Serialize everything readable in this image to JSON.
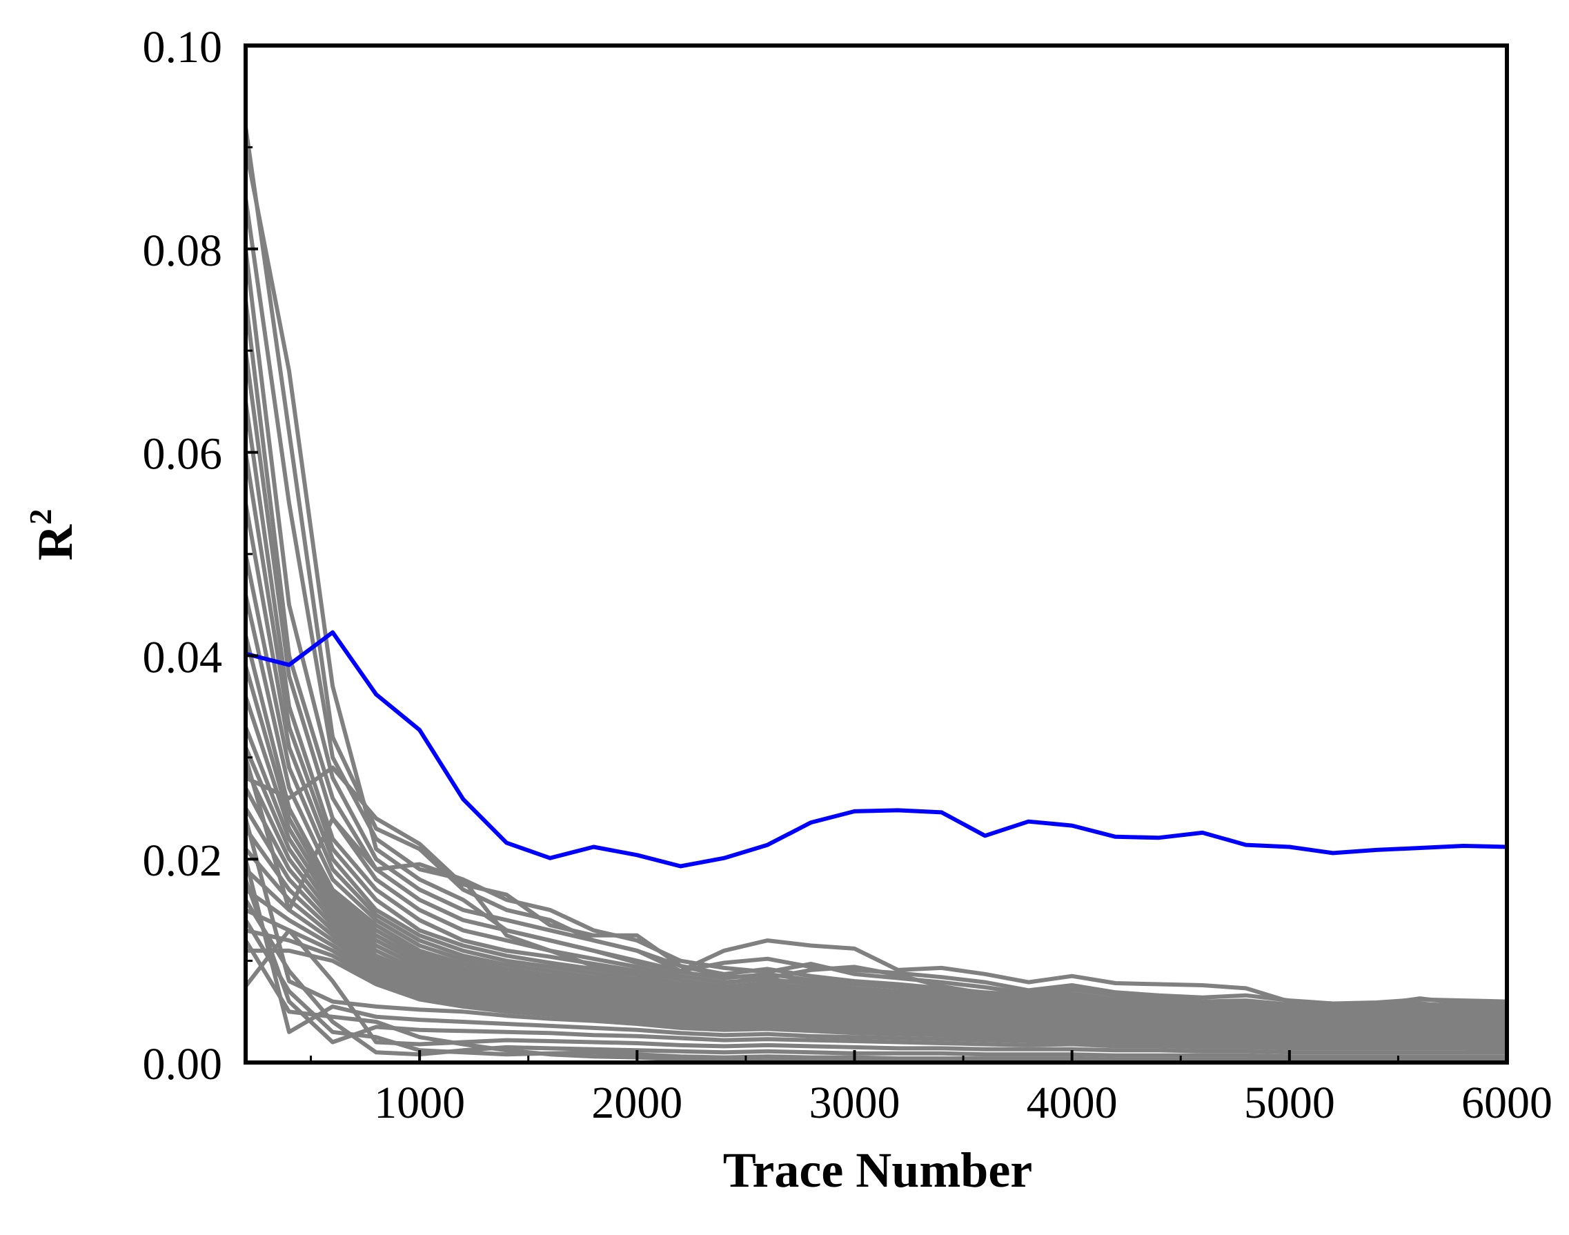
{
  "chart_data": {
    "type": "line",
    "title": "",
    "xlabel": "Trace Number",
    "ylabel": "R",
    "ylabel_sup": "2",
    "xlim": [
      200,
      6000
    ],
    "ylim": [
      0,
      0.1
    ],
    "x_ticks": [
      1000,
      2000,
      3000,
      4000,
      5000,
      6000
    ],
    "x_tick_labels": [
      "1000",
      "2000",
      "3000",
      "4000",
      "5000",
      "6000"
    ],
    "x_minor_ticks": [
      500,
      1500,
      2500,
      3500,
      4500,
      5500
    ],
    "y_ticks": [
      0,
      0.02,
      0.04,
      0.06,
      0.08,
      0.1
    ],
    "y_tick_labels": [
      "0.00",
      "0.02",
      "0.04",
      "0.06",
      "0.08",
      "0.10"
    ],
    "y_minor_ticks": [
      0.01,
      0.03,
      0.05,
      0.07,
      0.09
    ],
    "grid": false,
    "legend": "none",
    "colors": {
      "highlight": "#0000ff",
      "others": "#808080",
      "frame": "#000000"
    },
    "x": [
      200,
      400,
      600,
      800,
      1000,
      1200,
      1400,
      1600,
      1800,
      2000,
      2200,
      2400,
      2600,
      2800,
      3000,
      3200,
      3400,
      3600,
      3800,
      4000,
      4200,
      4400,
      4600,
      4800,
      5000,
      5200,
      5400,
      5600,
      5800,
      6000
    ],
    "highlight_series": {
      "color": "#0000ff",
      "values": [
        0.0402,
        0.0391,
        0.0423,
        0.0362,
        0.0327,
        0.0259,
        0.0216,
        0.0201,
        0.0212,
        0.0204,
        0.0193,
        0.0201,
        0.0214,
        0.0236,
        0.0247,
        0.0248,
        0.0246,
        0.0223,
        0.0237,
        0.0233,
        0.0222,
        0.0221,
        0.0226,
        0.0214,
        0.0212,
        0.0206,
        0.0209,
        0.0211,
        0.0213,
        0.0212
      ]
    },
    "other_series": [
      [
        0.092,
        0.062,
        0.032,
        0.023,
        0.021,
        0.017,
        0.015,
        0.014,
        0.012,
        0.011,
        0.009,
        0.011,
        0.012,
        0.0115,
        0.0112,
        0.0091,
        0.0093,
        0.0087,
        0.0079,
        0.0085,
        0.0078,
        0.0077,
        0.0076,
        0.0073,
        0.006,
        0.0058,
        0.0059,
        0.0062,
        0.0061,
        0.006
      ],
      [
        0.09,
        0.068,
        0.037,
        0.021,
        0.018,
        0.016,
        0.013,
        0.012,
        0.011,
        0.01,
        0.009,
        0.0098,
        0.0102,
        0.0094,
        0.0091,
        0.0088,
        0.0084,
        0.0079,
        0.0071,
        0.0076,
        0.0069,
        0.0066,
        0.0064,
        0.0066,
        0.0061,
        0.0058,
        0.0057,
        0.0063,
        0.0058,
        0.0057
      ],
      [
        0.085,
        0.055,
        0.03,
        0.022,
        0.019,
        0.018,
        0.016,
        0.015,
        0.013,
        0.012,
        0.01,
        0.0093,
        0.0089,
        0.0097,
        0.0087,
        0.0083,
        0.0079,
        0.0074,
        0.0068,
        0.0072,
        0.0066,
        0.0063,
        0.006,
        0.0061,
        0.0057,
        0.0055,
        0.0056,
        0.0058,
        0.0055,
        0.0054
      ],
      [
        0.08,
        0.045,
        0.028,
        0.02,
        0.017,
        0.015,
        0.014,
        0.013,
        0.012,
        0.011,
        0.0095,
        0.0087,
        0.0092,
        0.0085,
        0.008,
        0.0077,
        0.0073,
        0.0069,
        0.0066,
        0.0068,
        0.0062,
        0.006,
        0.0058,
        0.0057,
        0.0054,
        0.0052,
        0.0053,
        0.0055,
        0.0053,
        0.0052
      ],
      [
        0.075,
        0.04,
        0.026,
        0.019,
        0.016,
        0.014,
        0.013,
        0.012,
        0.011,
        0.0098,
        0.0089,
        0.0083,
        0.0087,
        0.0081,
        0.0077,
        0.0074,
        0.007,
        0.0066,
        0.0063,
        0.0065,
        0.0059,
        0.0057,
        0.0055,
        0.0054,
        0.0052,
        0.005,
        0.0051,
        0.0052,
        0.0051,
        0.005
      ],
      [
        0.07,
        0.038,
        0.024,
        0.018,
        0.015,
        0.013,
        0.012,
        0.011,
        0.0102,
        0.0094,
        0.0085,
        0.0079,
        0.0082,
        0.0077,
        0.0073,
        0.007,
        0.0067,
        0.0063,
        0.006,
        0.0062,
        0.0057,
        0.0055,
        0.0053,
        0.0052,
        0.005,
        0.0048,
        0.0049,
        0.005,
        0.0049,
        0.0048
      ],
      [
        0.065,
        0.035,
        0.022,
        0.017,
        0.014,
        0.012,
        0.011,
        0.0104,
        0.0097,
        0.009,
        0.0081,
        0.0075,
        0.0078,
        0.0073,
        0.007,
        0.0067,
        0.0064,
        0.006,
        0.0058,
        0.0059,
        0.0054,
        0.0052,
        0.0051,
        0.005,
        0.0048,
        0.0046,
        0.0047,
        0.0048,
        0.0047,
        0.0046
      ],
      [
        0.06,
        0.033,
        0.021,
        0.016,
        0.013,
        0.0115,
        0.0105,
        0.0098,
        0.0092,
        0.0086,
        0.0077,
        0.0072,
        0.0074,
        0.007,
        0.0067,
        0.0064,
        0.0061,
        0.0057,
        0.0055,
        0.0056,
        0.0052,
        0.005,
        0.0049,
        0.0048,
        0.0046,
        0.0044,
        0.0045,
        0.0046,
        0.0045,
        0.0044
      ],
      [
        0.055,
        0.031,
        0.02,
        0.015,
        0.0125,
        0.011,
        0.01,
        0.0094,
        0.0088,
        0.0082,
        0.0074,
        0.0069,
        0.0071,
        0.0067,
        0.0064,
        0.0061,
        0.0058,
        0.0055,
        0.0053,
        0.0054,
        0.005,
        0.0048,
        0.0047,
        0.0046,
        0.0044,
        0.0042,
        0.0043,
        0.0044,
        0.0043,
        0.0042
      ],
      [
        0.05,
        0.029,
        0.019,
        0.0145,
        0.012,
        0.0105,
        0.0096,
        0.009,
        0.0084,
        0.0079,
        0.0071,
        0.0066,
        0.0068,
        0.0064,
        0.0061,
        0.0058,
        0.0056,
        0.0053,
        0.0051,
        0.0052,
        0.0048,
        0.0046,
        0.0045,
        0.0044,
        0.0042,
        0.0041,
        0.0041,
        0.0042,
        0.0041,
        0.004
      ],
      [
        0.046,
        0.027,
        0.018,
        0.014,
        0.0115,
        0.0101,
        0.0092,
        0.0086,
        0.0081,
        0.0076,
        0.0068,
        0.0063,
        0.0065,
        0.0061,
        0.0058,
        0.0056,
        0.0054,
        0.0051,
        0.0049,
        0.005,
        0.0046,
        0.0044,
        0.0043,
        0.0042,
        0.0041,
        0.0039,
        0.004,
        0.004,
        0.0039,
        0.0039
      ],
      [
        0.042,
        0.025,
        0.017,
        0.0135,
        0.011,
        0.0097,
        0.0088,
        0.0083,
        0.0078,
        0.0073,
        0.0065,
        0.006,
        0.0062,
        0.0059,
        0.0056,
        0.0054,
        0.0052,
        0.0049,
        0.0047,
        0.0048,
        0.0044,
        0.0042,
        0.0041,
        0.0041,
        0.0039,
        0.0037,
        0.0038,
        0.0038,
        0.0037,
        0.0037
      ],
      [
        0.039,
        0.024,
        0.0165,
        0.013,
        0.0106,
        0.0093,
        0.0085,
        0.008,
        0.0075,
        0.007,
        0.0062,
        0.0058,
        0.006,
        0.0057,
        0.0054,
        0.0052,
        0.005,
        0.0047,
        0.0045,
        0.0046,
        0.0042,
        0.0041,
        0.004,
        0.0039,
        0.0037,
        0.0036,
        0.0036,
        0.0037,
        0.0036,
        0.0036
      ],
      [
        0.036,
        0.023,
        0.016,
        0.0125,
        0.0102,
        0.009,
        0.0082,
        0.0077,
        0.0072,
        0.0067,
        0.006,
        0.0056,
        0.0058,
        0.0055,
        0.0052,
        0.005,
        0.0048,
        0.0045,
        0.0043,
        0.0044,
        0.0041,
        0.0039,
        0.0038,
        0.0038,
        0.0036,
        0.0034,
        0.0035,
        0.0035,
        0.0034,
        0.0034
      ],
      [
        0.033,
        0.022,
        0.0155,
        0.012,
        0.0098,
        0.0087,
        0.0079,
        0.0074,
        0.0069,
        0.0065,
        0.0058,
        0.0054,
        0.0056,
        0.0053,
        0.005,
        0.0048,
        0.0046,
        0.0043,
        0.0041,
        0.0042,
        0.0039,
        0.0037,
        0.0036,
        0.0036,
        0.0034,
        0.0033,
        0.0033,
        0.0034,
        0.0033,
        0.0033
      ],
      [
        0.031,
        0.021,
        0.015,
        0.0115,
        0.0094,
        0.0083,
        0.0076,
        0.0071,
        0.0067,
        0.0062,
        0.0056,
        0.0052,
        0.0054,
        0.0051,
        0.0048,
        0.0046,
        0.0044,
        0.0042,
        0.004,
        0.0041,
        0.0037,
        0.0036,
        0.0035,
        0.0035,
        0.0033,
        0.0031,
        0.0032,
        0.0032,
        0.0031,
        0.0031
      ],
      [
        0.029,
        0.02,
        0.0145,
        0.011,
        0.009,
        0.008,
        0.0073,
        0.0068,
        0.0064,
        0.006,
        0.0054,
        0.005,
        0.0052,
        0.0049,
        0.0046,
        0.0044,
        0.0043,
        0.004,
        0.0038,
        0.0039,
        0.0036,
        0.0035,
        0.0034,
        0.0033,
        0.0032,
        0.003,
        0.0031,
        0.0031,
        0.003,
        0.003
      ],
      [
        0.027,
        0.019,
        0.014,
        0.0105,
        0.0087,
        0.0077,
        0.007,
        0.0065,
        0.0061,
        0.0057,
        0.0052,
        0.0048,
        0.005,
        0.0047,
        0.0044,
        0.0042,
        0.0041,
        0.0038,
        0.0037,
        0.0037,
        0.0034,
        0.0033,
        0.0032,
        0.0032,
        0.003,
        0.0029,
        0.0029,
        0.003,
        0.0029,
        0.0029
      ],
      [
        0.025,
        0.018,
        0.0135,
        0.0101,
        0.0083,
        0.0074,
        0.0067,
        0.0063,
        0.0059,
        0.0055,
        0.005,
        0.0046,
        0.0048,
        0.0045,
        0.0042,
        0.0041,
        0.0039,
        0.0037,
        0.0035,
        0.0036,
        0.0033,
        0.0032,
        0.0031,
        0.003,
        0.0029,
        0.0028,
        0.0028,
        0.0028,
        0.0028,
        0.0027
      ],
      [
        0.023,
        0.017,
        0.013,
        0.0097,
        0.008,
        0.0071,
        0.0064,
        0.006,
        0.0056,
        0.0053,
        0.0048,
        0.0044,
        0.0046,
        0.0043,
        0.0041,
        0.0039,
        0.0037,
        0.0035,
        0.0034,
        0.0034,
        0.0032,
        0.003,
        0.003,
        0.0029,
        0.0028,
        0.0026,
        0.0027,
        0.0027,
        0.0026,
        0.0026
      ],
      [
        0.021,
        0.016,
        0.0125,
        0.0093,
        0.0077,
        0.0068,
        0.0062,
        0.0058,
        0.0054,
        0.0051,
        0.0046,
        0.0042,
        0.0044,
        0.0041,
        0.0039,
        0.0037,
        0.0036,
        0.0034,
        0.0032,
        0.0033,
        0.003,
        0.0029,
        0.0028,
        0.0028,
        0.0026,
        0.0025,
        0.0026,
        0.0026,
        0.0025,
        0.0025
      ],
      [
        0.019,
        0.015,
        0.012,
        0.009,
        0.0074,
        0.0065,
        0.0059,
        0.0055,
        0.0052,
        0.0049,
        0.0044,
        0.004,
        0.0042,
        0.0039,
        0.0037,
        0.0036,
        0.0034,
        0.0032,
        0.0031,
        0.0031,
        0.0029,
        0.0028,
        0.0027,
        0.0027,
        0.0025,
        0.0024,
        0.0025,
        0.0025,
        0.0024,
        0.0024
      ],
      [
        0.017,
        0.014,
        0.0115,
        0.0086,
        0.0071,
        0.0063,
        0.0057,
        0.0053,
        0.005,
        0.0047,
        0.0042,
        0.0039,
        0.004,
        0.0038,
        0.0036,
        0.0034,
        0.0033,
        0.0031,
        0.003,
        0.003,
        0.0028,
        0.0027,
        0.0026,
        0.0026,
        0.0024,
        0.0023,
        0.0024,
        0.0024,
        0.0023,
        0.0023
      ],
      [
        0.015,
        0.013,
        0.011,
        0.0083,
        0.0068,
        0.006,
        0.0055,
        0.0051,
        0.0048,
        0.0045,
        0.004,
        0.0037,
        0.0038,
        0.0036,
        0.0034,
        0.0033,
        0.0031,
        0.003,
        0.0028,
        0.0029,
        0.0027,
        0.0026,
        0.0025,
        0.0025,
        0.0023,
        0.0022,
        0.0023,
        0.0023,
        0.0022,
        0.0022
      ],
      [
        0.013,
        0.012,
        0.0105,
        0.008,
        0.0065,
        0.0058,
        0.0052,
        0.0049,
        0.0046,
        0.0043,
        0.0039,
        0.0036,
        0.0037,
        0.0035,
        0.0033,
        0.0031,
        0.003,
        0.0028,
        0.0027,
        0.0028,
        0.0025,
        0.0024,
        0.0024,
        0.0023,
        0.0022,
        0.0021,
        0.0022,
        0.0022,
        0.0021,
        0.0021
      ],
      [
        0.011,
        0.011,
        0.01,
        0.0077,
        0.0062,
        0.0055,
        0.005,
        0.0047,
        0.0044,
        0.0041,
        0.0037,
        0.0034,
        0.0035,
        0.0033,
        0.0031,
        0.003,
        0.0029,
        0.0027,
        0.0026,
        0.0026,
        0.0024,
        0.0023,
        0.0023,
        0.0022,
        0.0021,
        0.002,
        0.0021,
        0.0021,
        0.002,
        0.002
      ],
      [
        0.024,
        0.008,
        0.006,
        0.0055,
        0.0052,
        0.005,
        0.0046,
        0.0043,
        0.0041,
        0.0038,
        0.0034,
        0.0032,
        0.0033,
        0.0031,
        0.0029,
        0.0028,
        0.0027,
        0.0025,
        0.0024,
        0.0025,
        0.0023,
        0.0022,
        0.0021,
        0.0021,
        0.002,
        0.0019,
        0.0019,
        0.002,
        0.0019,
        0.0019
      ],
      [
        0.02,
        0.003,
        0.0055,
        0.0045,
        0.0042,
        0.004,
        0.0038,
        0.0036,
        0.0034,
        0.0032,
        0.0029,
        0.0027,
        0.0028,
        0.0026,
        0.0025,
        0.0024,
        0.0023,
        0.0022,
        0.0021,
        0.0021,
        0.002,
        0.0019,
        0.0018,
        0.0018,
        0.0017,
        0.0016,
        0.0017,
        0.0017,
        0.0016,
        0.0016
      ],
      [
        0.018,
        0.006,
        0.002,
        0.0035,
        0.0032,
        0.0031,
        0.003,
        0.0029,
        0.0027,
        0.0026,
        0.0024,
        0.0022,
        0.0023,
        0.0022,
        0.0021,
        0.002,
        0.0019,
        0.0018,
        0.0017,
        0.0018,
        0.0016,
        0.0016,
        0.0015,
        0.0015,
        0.0014,
        0.0014,
        0.0014,
        0.0014,
        0.0014,
        0.0013
      ],
      [
        0.0075,
        0.013,
        0.008,
        0.002,
        0.0018,
        0.002,
        0.0022,
        0.0021,
        0.002,
        0.0019,
        0.0017,
        0.0016,
        0.0017,
        0.0016,
        0.0015,
        0.0014,
        0.0014,
        0.0013,
        0.0013,
        0.0013,
        0.0012,
        0.0012,
        0.0011,
        0.0011,
        0.001,
        0.001,
        0.001,
        0.001,
        0.001,
        0.001
      ],
      [
        0.016,
        0.009,
        0.004,
        0.001,
        0.0008,
        0.0012,
        0.0015,
        0.0014,
        0.0013,
        0.0012,
        0.0011,
        0.001,
        0.0011,
        0.001,
        0.0009,
        0.0009,
        0.0009,
        0.0008,
        0.0008,
        0.0008,
        0.0007,
        0.0007,
        0.0007,
        0.0007,
        0.0006,
        0.0006,
        0.0006,
        0.0006,
        0.0006,
        0.0006
      ],
      [
        0.014,
        0.007,
        0.003,
        0.0025,
        0.0012,
        0.001,
        0.0008,
        0.0009,
        0.001,
        0.0008,
        0.0006,
        0.0005,
        0.0006,
        0.0005,
        0.0005,
        0.0004,
        0.0004,
        0.0004,
        0.0004,
        0.0004,
        0.0003,
        0.0003,
        0.0003,
        0.0003,
        0.0003,
        0.0003,
        0.0003,
        0.0003,
        0.0003,
        0.0003
      ],
      [
        0.012,
        0.005,
        0.0045,
        0.004,
        0.0025,
        0.0018,
        0.0012,
        0.0008,
        0.0006,
        0.0005,
        0.0003,
        0.0002,
        0.0002,
        0.0002,
        0.0002,
        0.0002,
        0.0002,
        0.0002,
        0.0001,
        0.0001,
        0.0001,
        0.0001,
        0.0001,
        0.0001,
        0.0001,
        0.0001,
        0.0001,
        0.0001,
        0.0001,
        0.0001
      ],
      [
        0.03,
        0.015,
        0.024,
        0.019,
        0.0195,
        0.018,
        0.0125,
        0.011,
        0.0095,
        0.0088,
        0.0075,
        0.0072,
        0.0079,
        0.0081,
        0.0072,
        0.0068,
        0.0065,
        0.0061,
        0.0058,
        0.0062,
        0.0055,
        0.0052,
        0.0051,
        0.005,
        0.0048,
        0.0047,
        0.0047,
        0.0049,
        0.0048,
        0.0047
      ],
      [
        0.028,
        0.026,
        0.029,
        0.024,
        0.0215,
        0.0175,
        0.0165,
        0.0135,
        0.0125,
        0.0125,
        0.0095,
        0.0085,
        0.0083,
        0.0091,
        0.0094,
        0.0086,
        0.0075,
        0.0068,
        0.0064,
        0.0066,
        0.0062,
        0.0059,
        0.0057,
        0.0055,
        0.0053,
        0.0051,
        0.0052,
        0.0054,
        0.0052,
        0.0051
      ]
    ]
  }
}
